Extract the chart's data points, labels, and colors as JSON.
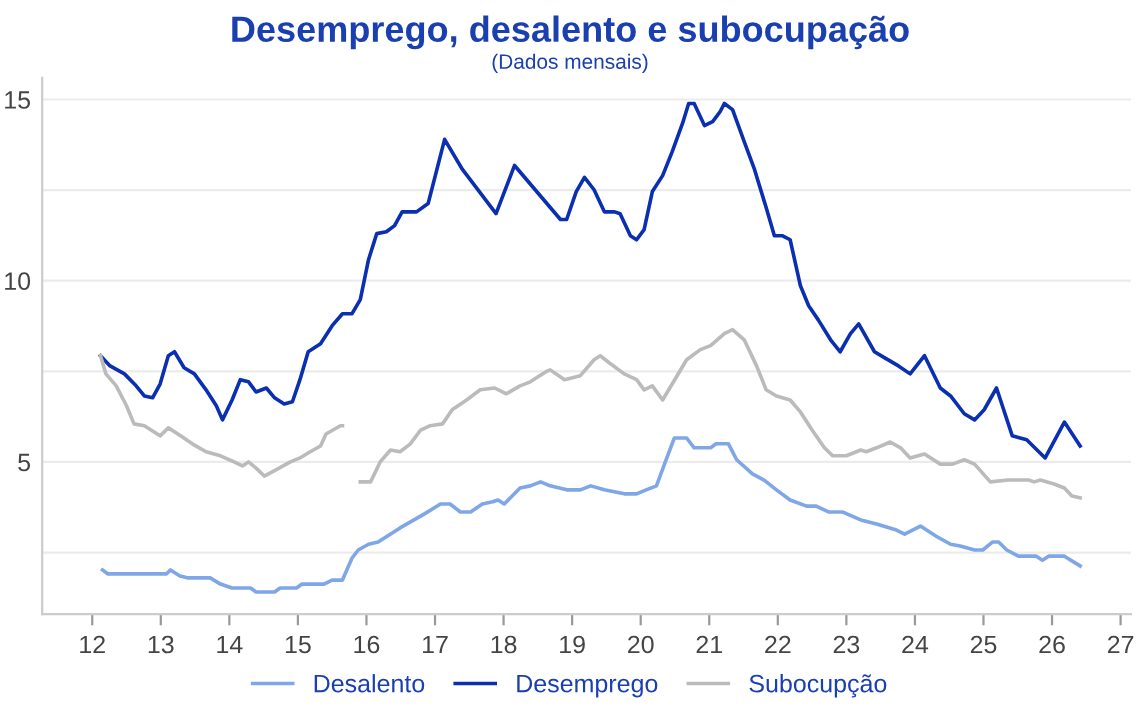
{
  "chart_data": {
    "type": "line",
    "title": "Desemprego, desalento e subocupação",
    "subtitle": "(Dados mensais)",
    "xlim": [
      11.27,
      27.15
    ],
    "xticks": [
      12,
      13,
      14,
      15,
      16,
      17,
      18,
      19,
      20,
      21,
      22,
      23,
      24,
      25,
      26,
      27
    ],
    "ylim": [
      0.8,
      15.6
    ],
    "yticks": [
      {
        "value": 2.5,
        "label": null
      },
      5,
      {
        "value": 7.5,
        "label": null
      },
      10,
      {
        "value": 12.5,
        "label": null
      },
      15
    ],
    "grid": "y",
    "legend": "bottom",
    "marker": "none",
    "line_style": "solid",
    "series": [
      {
        "name": "Desalento",
        "color": "#7fa6e6",
        "x": [
          12.15,
          12.23,
          13.08,
          13.14,
          13.28,
          13.4,
          13.72,
          13.87,
          14.04,
          14.31,
          14.39,
          14.66,
          14.74,
          14.98,
          15.06,
          15.38,
          15.5,
          15.65,
          15.79,
          15.88,
          16.03,
          16.17,
          16.49,
          16.84,
          17.08,
          17.22,
          17.37,
          17.52,
          17.69,
          17.84,
          17.92,
          18.01,
          18.24,
          18.39,
          18.54,
          18.68,
          18.92,
          19.12,
          19.27,
          19.47,
          19.76,
          19.94,
          20.08,
          20.23,
          20.37,
          20.49,
          20.67,
          20.78,
          21.02,
          21.1,
          21.28,
          21.4,
          21.63,
          21.8,
          21.98,
          22.18,
          22.42,
          22.56,
          22.74,
          22.94,
          23.21,
          23.44,
          23.73,
          23.85,
          24.08,
          24.31,
          24.52,
          24.66,
          24.87,
          24.99,
          25.13,
          25.22,
          25.34,
          25.51,
          25.77,
          25.86,
          25.95,
          26.18,
          26.41
        ],
        "values": [
          2.02,
          1.91,
          1.91,
          2.02,
          1.85,
          1.8,
          1.8,
          1.63,
          1.52,
          1.52,
          1.41,
          1.41,
          1.52,
          1.52,
          1.63,
          1.63,
          1.74,
          1.74,
          2.35,
          2.57,
          2.73,
          2.79,
          3.18,
          3.56,
          3.84,
          3.84,
          3.62,
          3.62,
          3.84,
          3.9,
          3.95,
          3.84,
          4.28,
          4.34,
          4.45,
          4.34,
          4.23,
          4.23,
          4.34,
          4.23,
          4.12,
          4.12,
          4.23,
          4.34,
          5.06,
          5.66,
          5.66,
          5.39,
          5.39,
          5.5,
          5.5,
          5.06,
          4.67,
          4.5,
          4.23,
          3.95,
          3.78,
          3.78,
          3.62,
          3.62,
          3.4,
          3.29,
          3.12,
          3.01,
          3.23,
          2.95,
          2.73,
          2.68,
          2.57,
          2.57,
          2.79,
          2.79,
          2.57,
          2.4,
          2.4,
          2.29,
          2.4,
          2.4,
          2.13
        ]
      },
      {
        "name": "Desemprego",
        "color": "#0a2fb0",
        "x": [
          12.12,
          12.26,
          12.47,
          12.64,
          12.76,
          12.88,
          12.99,
          13.11,
          13.2,
          13.34,
          13.49,
          13.66,
          13.81,
          13.9,
          14.04,
          14.16,
          14.28,
          14.39,
          14.54,
          14.66,
          14.8,
          14.92,
          15.03,
          15.15,
          15.33,
          15.5,
          15.65,
          15.79,
          15.91,
          16.03,
          16.15,
          16.29,
          16.41,
          16.52,
          16.73,
          16.9,
          17.14,
          17.4,
          17.89,
          18.16,
          18.83,
          18.92,
          19.06,
          19.18,
          19.32,
          19.47,
          19.62,
          19.7,
          19.85,
          19.94,
          20.05,
          20.17,
          20.32,
          20.46,
          20.61,
          20.7,
          20.78,
          20.93,
          21.05,
          21.16,
          21.22,
          21.34,
          21.51,
          21.66,
          21.83,
          21.95,
          22.07,
          22.18,
          22.33,
          22.45,
          22.59,
          22.77,
          22.91,
          23.06,
          23.18,
          23.41,
          23.56,
          23.76,
          23.93,
          24.14,
          24.37,
          24.52,
          24.72,
          24.87,
          25.01,
          25.19,
          25.42,
          25.63,
          25.9,
          26.18,
          26.41
        ],
        "values": [
          7.93,
          7.65,
          7.43,
          7.1,
          6.82,
          6.77,
          7.15,
          7.93,
          8.04,
          7.6,
          7.43,
          6.99,
          6.55,
          6.16,
          6.71,
          7.27,
          7.21,
          6.93,
          7.04,
          6.77,
          6.6,
          6.66,
          7.27,
          8.04,
          8.26,
          8.76,
          9.09,
          9.09,
          9.48,
          10.58,
          11.3,
          11.35,
          11.52,
          11.9,
          11.9,
          12.13,
          13.9,
          13.07,
          11.85,
          13.18,
          11.69,
          11.69,
          12.46,
          12.85,
          12.51,
          11.9,
          11.9,
          11.85,
          11.24,
          11.13,
          11.41,
          12.46,
          12.9,
          13.56,
          14.34,
          14.89,
          14.89,
          14.28,
          14.39,
          14.67,
          14.89,
          14.72,
          13.84,
          13.07,
          12.02,
          11.24,
          11.24,
          11.13,
          9.86,
          9.31,
          8.92,
          8.37,
          8.04,
          8.54,
          8.81,
          8.04,
          7.87,
          7.65,
          7.43,
          7.93,
          7.04,
          6.82,
          6.33,
          6.16,
          6.44,
          7.04,
          5.72,
          5.61,
          5.11,
          6.1,
          5.44
        ]
      },
      {
        "name": "Subocupção",
        "color": "#bbbbbb",
        "x": [
          12.12,
          12.2,
          12.35,
          12.5,
          12.61,
          12.76,
          12.99,
          13.11,
          13.25,
          13.46,
          13.66,
          13.87,
          14.07,
          14.19,
          14.28,
          14.39,
          14.51,
          14.68,
          14.89,
          15.03,
          15.18,
          15.33,
          15.41,
          15.62,
          15.65,
          15.78,
          15.91,
          16.06,
          16.2,
          16.35,
          16.49,
          16.64,
          16.79,
          16.93,
          17.11,
          17.25,
          17.46,
          17.66,
          17.87,
          18.04,
          18.24,
          18.39,
          18.48,
          18.62,
          18.68,
          18.89,
          19.12,
          19.32,
          19.41,
          19.56,
          19.76,
          19.94,
          20.05,
          20.17,
          20.32,
          20.67,
          20.87,
          21.02,
          21.22,
          21.34,
          21.51,
          21.69,
          21.83,
          21.98,
          22.18,
          22.33,
          22.5,
          22.68,
          22.8,
          23.0,
          23.21,
          23.29,
          23.44,
          23.64,
          23.79,
          23.93,
          24.14,
          24.37,
          24.55,
          24.72,
          24.87,
          25.1,
          25.36,
          25.66,
          25.74,
          25.83,
          26.03,
          26.18,
          26.29,
          26.41
        ],
        "values": [
          7.93,
          7.43,
          7.1,
          6.55,
          6.05,
          6.0,
          5.72,
          5.94,
          5.77,
          5.5,
          5.28,
          5.17,
          5.0,
          4.89,
          5.0,
          4.83,
          4.61,
          4.78,
          5.0,
          5.11,
          5.28,
          5.44,
          5.77,
          6.0,
          6.0,
          null,
          4.45,
          4.45,
          5.0,
          5.33,
          5.28,
          5.5,
          5.88,
          6.0,
          6.05,
          6.44,
          6.71,
          6.99,
          7.04,
          6.88,
          7.1,
          7.21,
          7.32,
          7.49,
          7.54,
          7.27,
          7.38,
          7.82,
          7.93,
          7.71,
          7.43,
          7.27,
          6.99,
          7.1,
          6.71,
          7.82,
          8.1,
          8.21,
          8.54,
          8.65,
          8.37,
          7.65,
          6.99,
          6.82,
          6.71,
          6.38,
          5.88,
          5.39,
          5.17,
          5.17,
          5.33,
          5.28,
          5.39,
          5.55,
          5.39,
          5.11,
          5.22,
          4.94,
          4.94,
          5.06,
          4.94,
          4.45,
          4.5,
          4.5,
          4.45,
          4.5,
          4.39,
          4.28,
          4.06,
          4.01
        ]
      }
    ]
  }
}
